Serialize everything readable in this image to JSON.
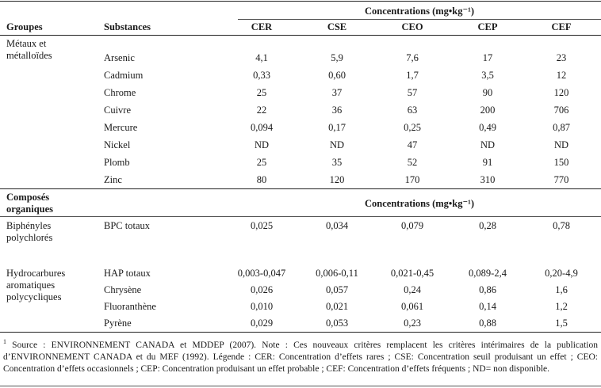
{
  "header": {
    "concentrations": "Concentrations (mg•kg⁻¹)",
    "groupes": "Groupes",
    "substances": "Substances",
    "columns": [
      "CER",
      "CSE",
      "CEO",
      "CEP",
      "CEF"
    ]
  },
  "metaux": {
    "group_label": "Métaux et métalloïdes",
    "rows": [
      {
        "name": "Arsenic",
        "values": [
          "4,1",
          "5,9",
          "7,6",
          "17",
          "23"
        ]
      },
      {
        "name": "Cadmium",
        "values": [
          "0,33",
          "0,60",
          "1,7",
          "3,5",
          "12"
        ]
      },
      {
        "name": "Chrome",
        "values": [
          "25",
          "37",
          "57",
          "90",
          "120"
        ]
      },
      {
        "name": "Cuivre",
        "values": [
          "22",
          "36",
          "63",
          "200",
          "706"
        ]
      },
      {
        "name": "Mercure",
        "values": [
          "0,094",
          "0,17",
          "0,25",
          "0,49",
          "0,87"
        ]
      },
      {
        "name": "Nickel",
        "values": [
          "ND",
          "ND",
          "47",
          "ND",
          "ND"
        ]
      },
      {
        "name": "Plomb",
        "values": [
          "25",
          "35",
          "52",
          "91",
          "150"
        ]
      },
      {
        "name": "Zinc",
        "values": [
          "80",
          "120",
          "170",
          "310",
          "770"
        ]
      }
    ]
  },
  "organiques": {
    "group_label": "Composés organiques",
    "concentrations": "Concentrations (mg•kg⁻¹)",
    "bpc": {
      "group_label": "Biphényles polychlorés",
      "name": "BPC totaux",
      "values": [
        "0,025",
        "0,034",
        "0,079",
        "0,28",
        "0,78"
      ]
    },
    "hap": {
      "group_label": "Hydrocarbures aromatiques polycycliques",
      "rows": [
        {
          "name": "HAP totaux",
          "values": [
            "0,003-0,047",
            "0,006-0,11",
            "0,021-0,45",
            "0,089-2,4",
            "0,20-4,9"
          ]
        },
        {
          "name": "Chrysène",
          "values": [
            "0,026",
            "0,057",
            "0,24",
            "0,86",
            "1,6"
          ]
        },
        {
          "name": "Fluoranthène",
          "values": [
            "0,010",
            "0,021",
            "0,061",
            "0,14",
            "1,2"
          ]
        },
        {
          "name": "Pyrène",
          "values": [
            "0,029",
            "0,053",
            "0,23",
            "0,88",
            "1,5"
          ]
        }
      ]
    }
  },
  "footnote": {
    "mark": "1",
    "text": " Source : ENVIRONNEMENT CANADA et MDDEP (2007). Note : Ces nouveaux critères remplacent les critères intérimaires de la publication d’ENVIRONNEMENT CANADA et du MEF (1992). Légende : CER: Concentration d’effets rares ; CSE: Concentration seuil produisant un effet ; CEO: Concentration d’effets occasionnels ; CEP: Concentration produisant un effet probable ; CEF: Concentration d’effets fréquents ; ND= non disponible."
  }
}
